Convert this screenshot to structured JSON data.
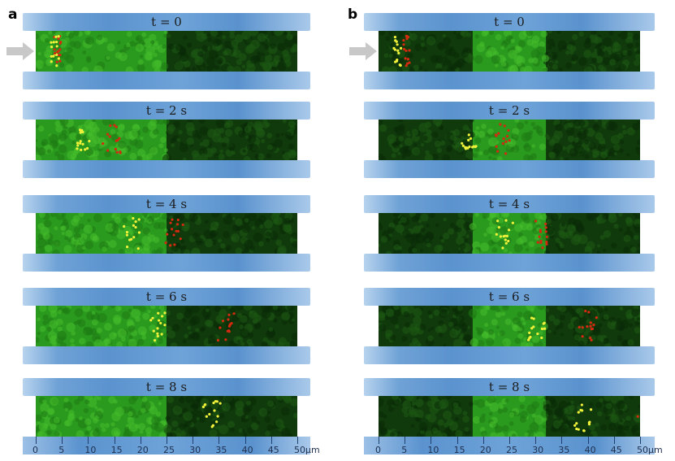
{
  "panels": [
    {
      "label": "a",
      "frames": [
        "t = 0",
        "t = 2 s",
        "t = 4 s",
        "t = 6 s",
        "t = 8 s"
      ]
    },
    {
      "label": "b",
      "frames": [
        "t = 0",
        "t = 2 s",
        "t = 4 s",
        "t = 6 s",
        "t = 8 s"
      ]
    }
  ],
  "scale": {
    "ticks": [
      "0",
      "5",
      "10",
      "15",
      "20",
      "25",
      "30",
      "35",
      "40",
      "45",
      "50"
    ],
    "unit": "μm"
  },
  "colors": {
    "bright_tissue": "#2a9a1e",
    "dark_tissue": "#103a0c",
    "yellow_dots": "#f2f23a",
    "red_dots": "#d42a10",
    "channel": "#5b93cf"
  }
}
